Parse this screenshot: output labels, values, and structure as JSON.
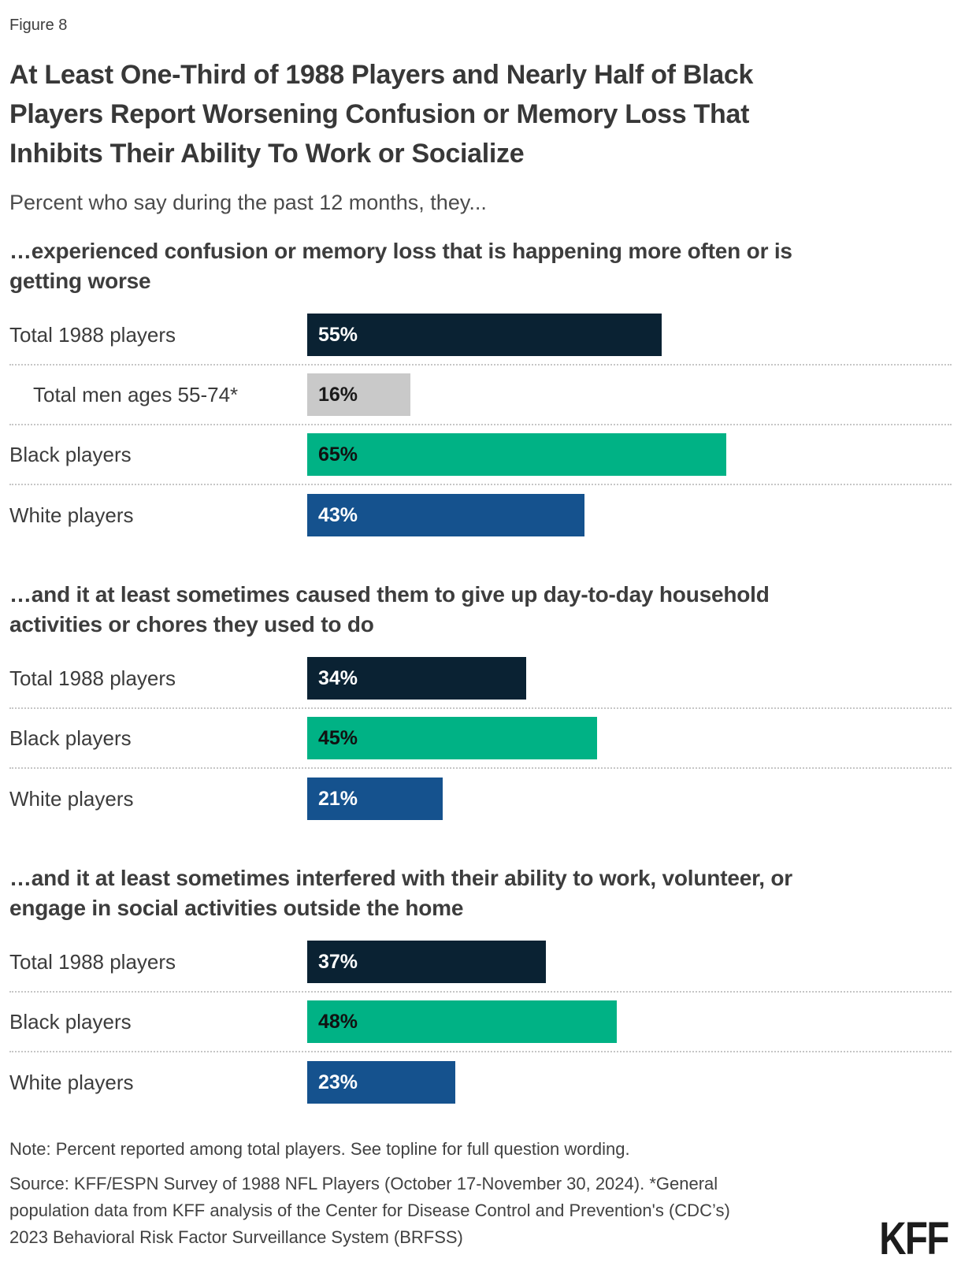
{
  "figure_label": "Figure 8",
  "title": "At Least One-Third of 1988 Players and Nearly Half of Black\nPlayers Report Worsening Confusion or Memory Loss That\nInhibits Their Ability To Work or Socialize",
  "subtitle": "Percent who say during the past 12 months, they...",
  "note": "Note: Percent reported among total players. See topline for full question wording.",
  "source": "Source: KFF/ESPN Survey of 1988 NFL Players (October 17-November 30, 2024). *General\npopulation data from KFF analysis of the Center for Disease Control and Prevention's (CDC’s)\n2023 Behavioral Risk Factor Surveillance System (BRFSS)",
  "logo_text": "KFF",
  "colors": {
    "navy": {
      "bar": "#0a2233",
      "text": "#ffffff"
    },
    "gray": {
      "bar": "#c9c9c9",
      "text": "#1a1a1a"
    },
    "green": {
      "bar": "#00b285",
      "text": "#111111"
    },
    "blue": {
      "bar": "#15528e",
      "text": "#ffffff"
    },
    "dotted_separator": "#c6c6c6"
  },
  "chart_data": [
    {
      "type": "bar",
      "title": "…experienced confusion or memory loss that is happening more often or is\ngetting worse",
      "orientation": "horizontal",
      "unit": "%",
      "xlim": [
        0,
        100
      ],
      "grid": false,
      "categories": [
        "Total 1988 players",
        "Total men ages 55-74*",
        "Black players",
        "White players"
      ],
      "values": [
        55,
        16,
        65,
        43
      ],
      "bar_colors": [
        "navy",
        "gray",
        "green",
        "blue"
      ],
      "indents": [
        false,
        true,
        false,
        false
      ],
      "value_labels": [
        "55%",
        "16%",
        "65%",
        "43%"
      ]
    },
    {
      "type": "bar",
      "title": "…and it at least sometimes caused them to give up day-to-day household\nactivities or chores they used to do",
      "orientation": "horizontal",
      "unit": "%",
      "xlim": [
        0,
        100
      ],
      "grid": false,
      "categories": [
        "Total 1988 players",
        "Black players",
        "White players"
      ],
      "values": [
        34,
        45,
        21
      ],
      "bar_colors": [
        "navy",
        "green",
        "blue"
      ],
      "indents": [
        false,
        false,
        false
      ],
      "value_labels": [
        "34%",
        "45%",
        "21%"
      ]
    },
    {
      "type": "bar",
      "title": "…and it at least sometimes interfered with their ability to work, volunteer, or\nengage in social activities outside the home",
      "orientation": "horizontal",
      "unit": "%",
      "xlim": [
        0,
        100
      ],
      "grid": false,
      "categories": [
        "Total 1988 players",
        "Black players",
        "White players"
      ],
      "values": [
        37,
        48,
        23
      ],
      "bar_colors": [
        "navy",
        "green",
        "blue"
      ],
      "indents": [
        false,
        false,
        false
      ],
      "value_labels": [
        "37%",
        "48%",
        "23%"
      ]
    }
  ]
}
